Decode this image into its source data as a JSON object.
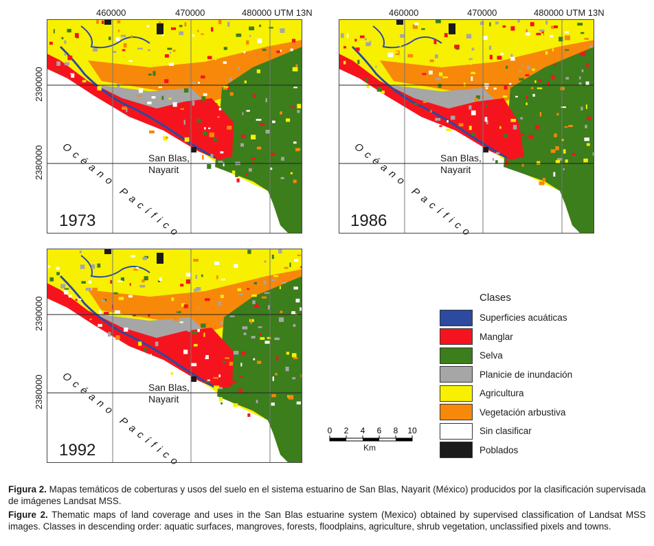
{
  "maps": [
    {
      "year": "1973",
      "x_ticks": [
        "460000",
        "470000",
        "480000 UTM 13N"
      ],
      "y_ticks": [
        "2390000",
        "2380000"
      ],
      "town": [
        "San Blas,",
        "Nayarit"
      ],
      "ocean": "Océano Pacífico"
    },
    {
      "year": "1986",
      "x_ticks": [
        "460000",
        "470000",
        "480000 UTM 13N"
      ],
      "y_ticks": [
        "2390000",
        "2380000"
      ],
      "town": [
        "San Blas,",
        "Nayarit"
      ],
      "ocean": "Océano Pacífico"
    },
    {
      "year": "1992",
      "x_ticks": [],
      "y_ticks": [
        "2390000",
        "2380000"
      ],
      "town": [
        "San Blas,",
        "Nayarit"
      ],
      "ocean": "Océano Pacífico"
    }
  ],
  "legend": {
    "title": "Clases",
    "items": [
      {
        "label": "Superficies acuáticas",
        "color": "#2b4aa0"
      },
      {
        "label": "Manglar",
        "color": "#f5141e"
      },
      {
        "label": "Selva",
        "color": "#3c7d1c"
      },
      {
        "label": "Planicie de inundación",
        "color": "#a6a6a6"
      },
      {
        "label": "Agricultura",
        "color": "#f7f000"
      },
      {
        "label": "Vegetación arbustiva",
        "color": "#f7880a"
      },
      {
        "label": "Sin clasificar",
        "color": "#ffffff"
      },
      {
        "label": "Poblados",
        "color": "#1a1a1a"
      }
    ]
  },
  "scale": {
    "ticks": [
      "0",
      "2",
      "4",
      "6",
      "8",
      "10"
    ],
    "unit": "Km"
  },
  "caption": {
    "es_label": "Figura 2.",
    "es_text": " Mapas temáticos de coberturas y usos del suelo en el sistema estuarino de San Blas, Nayarit (México) producidos por la clasificación supervisada de imágenes Landsat MSS.",
    "en_label": "Figure 2.",
    "en_text": " Thematic maps of land coverage and uses in the San Blas estuarine system (Mexico) obtained by supervised classification of Landsat MSS images. Classes in descending order: aquatic surfaces, mangroves, forests, floodplains, agriculture, shrub vegetation, unclassified pixels and towns."
  }
}
